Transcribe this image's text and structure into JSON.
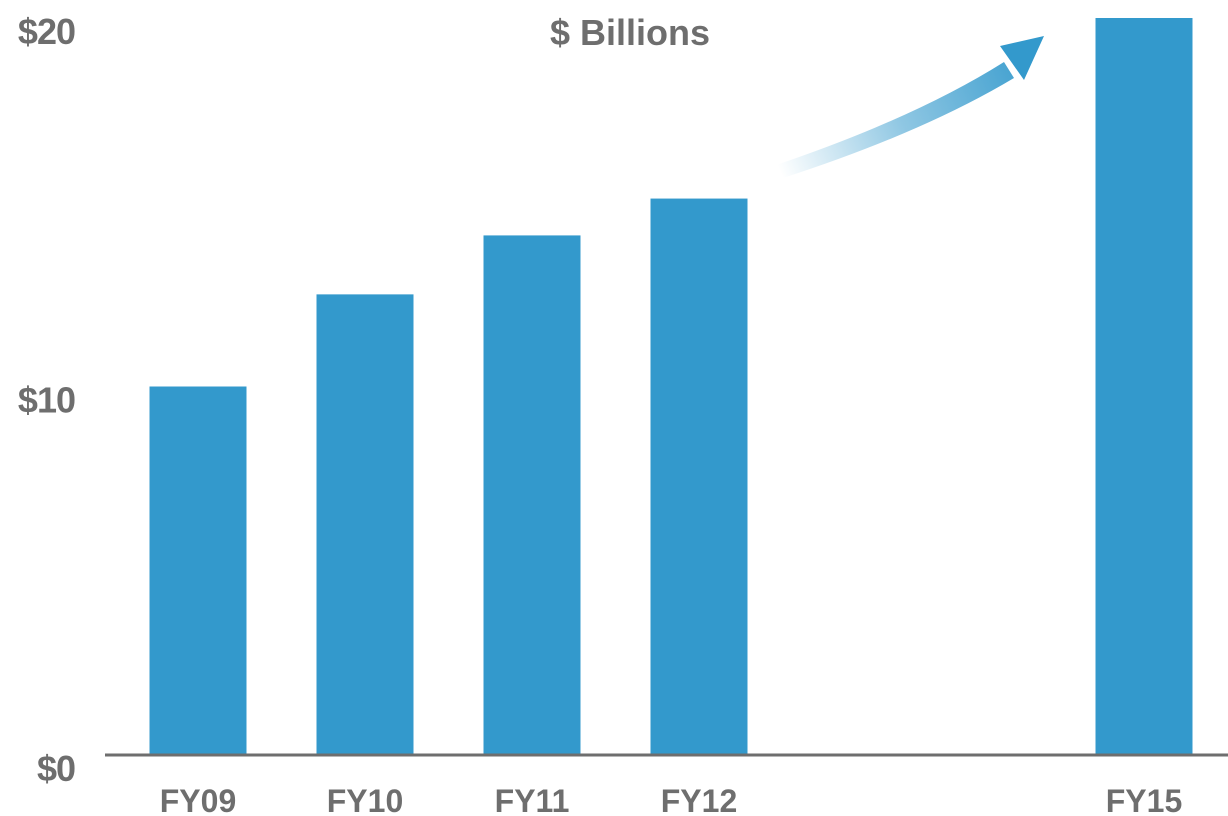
{
  "chart_data": {
    "type": "bar",
    "title": "$ Billions",
    "categories": [
      "FY09",
      "FY10",
      "FY11",
      "FY12",
      "FY15"
    ],
    "values": [
      10.0,
      12.5,
      14.1,
      15.1,
      20.0
    ],
    "ylim": [
      0,
      20
    ],
    "yticks": [
      {
        "value": 0,
        "label": "$0"
      },
      {
        "value": 10,
        "label": "$10"
      },
      {
        "value": 20,
        "label": "$20"
      }
    ],
    "xlabel": "",
    "ylabel": "",
    "grid": false,
    "annotation": "growth-arrow",
    "colors": {
      "bar": "#3399CC",
      "axis": "#6E6E6E",
      "text": "#6E6E6E",
      "arrow": "#3399CC"
    }
  }
}
